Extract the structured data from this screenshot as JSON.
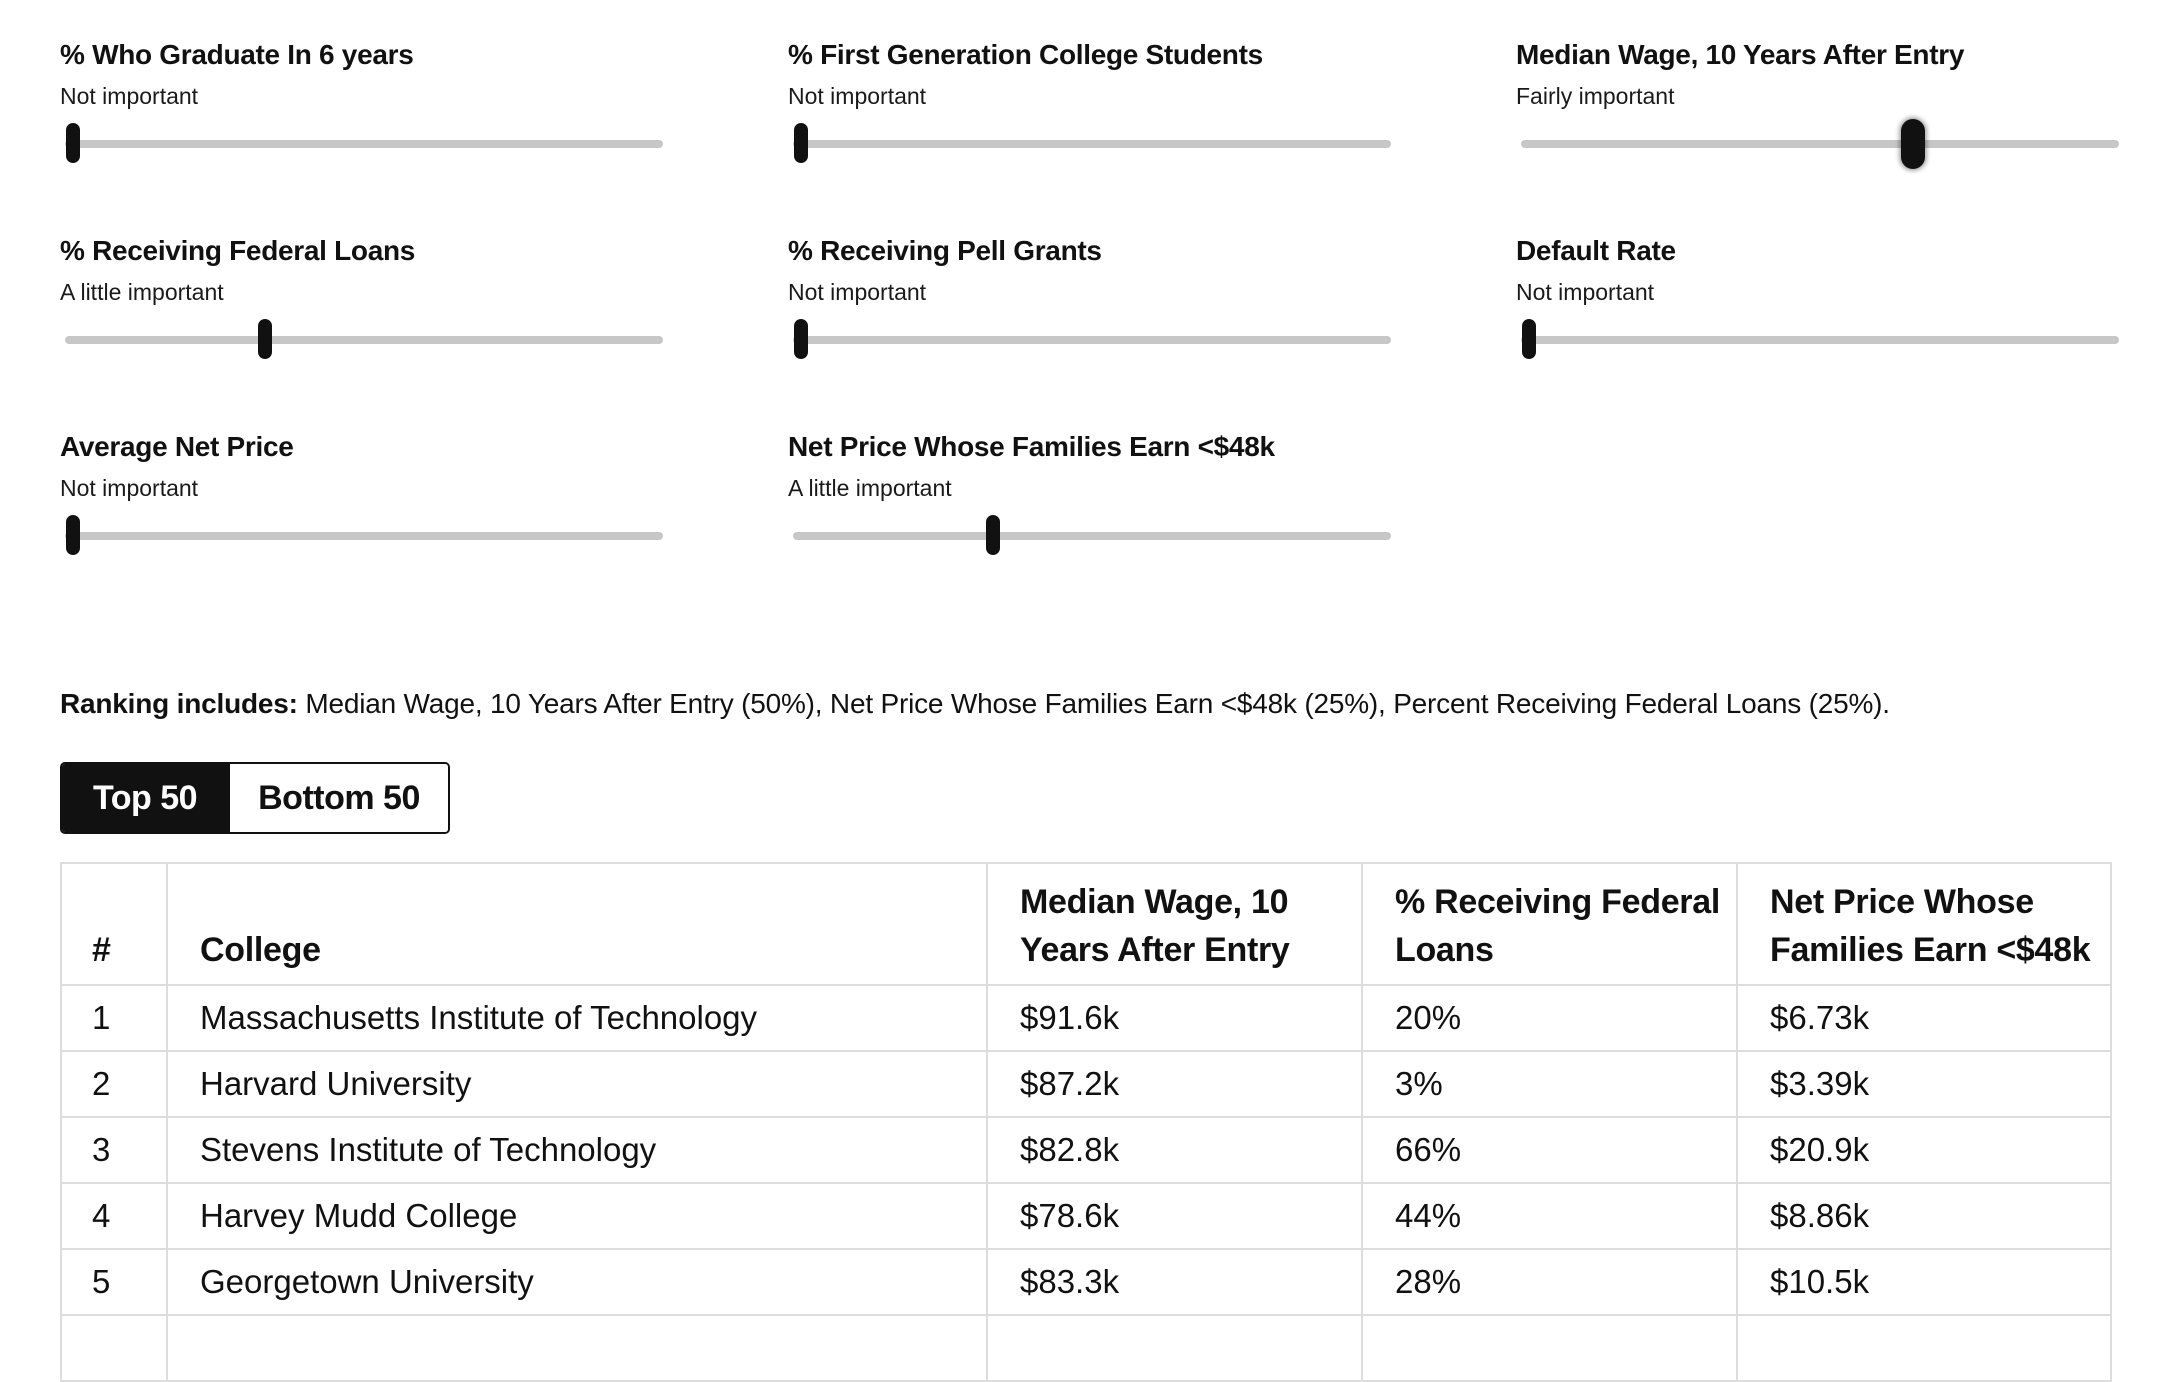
{
  "sliders": [
    {
      "title": "% Who Graduate In 6 years",
      "level": "Not important",
      "value": 0
    },
    {
      "title": "% First Generation College Students",
      "level": "Not important",
      "value": 0
    },
    {
      "title": "Median Wage, 10 Years After Entry",
      "level": "Fairly important",
      "value": 0.66
    },
    {
      "title": "% Receiving Federal Loans",
      "level": "A little important",
      "value": 0.33
    },
    {
      "title": "% Receiving Pell Grants",
      "level": "Not important",
      "value": 0
    },
    {
      "title": "Default Rate",
      "level": "Not important",
      "value": 0
    },
    {
      "title": "Average Net Price",
      "level": "Not important",
      "value": 0
    },
    {
      "title": "Net Price Whose Families Earn <$48k",
      "level": "A little important",
      "value": 0.33
    }
  ],
  "summary": {
    "label": "Ranking includes:",
    "text": " Median Wage, 10 Years After Entry (50%), Net Price Whose Families Earn <$48k (25%), Percent Receiving Federal Loans (25%)."
  },
  "toggle": {
    "top_label": "Top 50",
    "bottom_label": "Bottom 50",
    "selected": "top"
  },
  "table": {
    "headers": [
      "#",
      "College",
      "Median Wage, 10 Years After Entry",
      "% Receiving Federal Loans",
      "Net Price Whose Families Earn <$48k"
    ],
    "rows": [
      [
        "1",
        "Massachusetts Institute of Technology",
        "$91.6k",
        "20%",
        "$6.73k"
      ],
      [
        "2",
        "Harvard University",
        "$87.2k",
        "3%",
        "$3.39k"
      ],
      [
        "3",
        "Stevens Institute of Technology",
        "$82.8k",
        "66%",
        "$20.9k"
      ],
      [
        "4",
        "Harvey Mudd College",
        "$78.6k",
        "44%",
        "$8.86k"
      ],
      [
        "5",
        "Georgetown University",
        "$83.3k",
        "28%",
        "$10.5k"
      ]
    ]
  }
}
